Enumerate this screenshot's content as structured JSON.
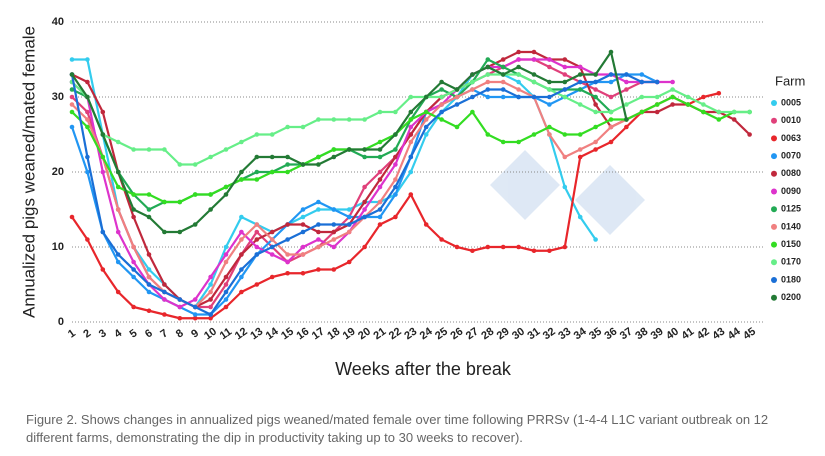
{
  "chart_data": {
    "type": "line",
    "ylabel": "Annualized pigs weaned/mated female",
    "xlabel": "Weeks after the break",
    "legend_title": "Farm",
    "legend": "right",
    "grid": true,
    "caption": "Figure 2. Shows changes in annualized pigs weaned/mated female over time following PRRSv (1-4-4 L1C variant outbreak on 12 different farms, demonstrating the dip in productivity taking up to 30 weeks to recover).",
    "categories": [
      1,
      2,
      3,
      4,
      5,
      6,
      7,
      8,
      9,
      10,
      11,
      12,
      13,
      14,
      15,
      16,
      17,
      18,
      19,
      20,
      21,
      22,
      23,
      24,
      25,
      26,
      27,
      28,
      29,
      30,
      31,
      32,
      33,
      34,
      35,
      36,
      37,
      38,
      39,
      40,
      41,
      42,
      43,
      44,
      45
    ],
    "ylim": [
      0,
      40
    ],
    "yticks": [
      0,
      10,
      20,
      30,
      40
    ],
    "series": [
      {
        "name": "0005",
        "color": "#33ccee",
        "values": [
          35,
          35,
          25,
          15,
          10,
          7,
          5,
          3,
          2,
          5,
          10,
          14,
          13,
          12,
          13,
          14,
          15,
          15,
          15,
          16,
          16,
          17,
          20,
          25,
          28,
          30,
          33,
          34,
          33,
          32,
          30,
          25,
          18,
          14,
          11,
          null,
          null,
          null,
          null,
          null,
          null,
          null,
          null,
          null,
          null
        ]
      },
      {
        "name": "0010",
        "color": "#e0407a",
        "values": [
          30,
          28,
          22,
          15,
          10,
          6,
          4,
          3,
          2,
          2,
          5,
          9,
          12,
          10,
          8,
          9,
          10,
          12,
          14,
          18,
          20,
          22,
          25,
          28,
          30,
          31,
          32,
          33,
          34,
          35,
          35,
          34,
          33,
          32,
          31,
          30,
          31,
          32,
          32,
          null,
          null,
          null,
          null,
          null,
          null
        ]
      },
      {
        "name": "0063",
        "color": "#e8262b",
        "values": [
          14,
          11,
          7,
          4,
          2,
          1.5,
          1,
          0.5,
          0.5,
          0.5,
          2,
          4,
          5,
          6,
          6.5,
          6.5,
          7,
          7,
          8,
          10,
          13,
          14,
          17,
          13,
          11,
          10,
          9.5,
          10,
          10,
          10,
          9.5,
          9.5,
          10,
          22,
          23,
          24,
          26,
          28,
          29,
          30,
          29,
          30,
          30.5,
          null,
          null
        ]
      },
      {
        "name": "0070",
        "color": "#2196f3",
        "values": [
          26,
          20,
          12,
          8,
          6,
          4,
          3,
          2,
          1,
          1,
          3,
          6,
          9,
          11,
          13,
          15,
          16,
          15,
          14,
          14,
          14,
          17,
          22,
          28,
          29,
          30,
          31,
          30,
          30,
          30,
          30,
          29,
          30,
          31,
          32,
          32,
          33,
          33,
          32,
          null,
          null,
          null,
          null,
          null,
          null
        ]
      },
      {
        "name": "0080",
        "color": "#c0283c",
        "values": [
          33,
          32,
          28,
          20,
          14,
          9,
          5,
          3,
          2,
          3,
          6,
          9,
          11,
          12,
          13,
          13,
          12,
          12,
          13,
          16,
          19,
          22,
          25,
          28,
          30,
          31,
          33,
          34,
          35,
          36,
          36,
          35,
          35,
          34,
          29,
          26,
          27,
          28,
          28,
          29,
          29,
          28,
          28,
          27,
          25
        ]
      },
      {
        "name": "0090",
        "color": "#dd33cc",
        "values": [
          32,
          30,
          20,
          12,
          8,
          5,
          3,
          2,
          3,
          6,
          9,
          12,
          10,
          9,
          8,
          10,
          11,
          10,
          12,
          15,
          18,
          21,
          26,
          28,
          29,
          31,
          33,
          34,
          34,
          35,
          35,
          35,
          34,
          34,
          33,
          33,
          32,
          32,
          32,
          32,
          null,
          null,
          null,
          null,
          null
        ]
      },
      {
        "name": "0125",
        "color": "#22aa55",
        "values": [
          31,
          30,
          25,
          20,
          17,
          15,
          16,
          16,
          17,
          17,
          18,
          19,
          20,
          20,
          21,
          21,
          22,
          23,
          23,
          22,
          22,
          23,
          27,
          30,
          31,
          30,
          32,
          35,
          34,
          33,
          32,
          31,
          31,
          31,
          30,
          28,
          null,
          null,
          null,
          null,
          null,
          null,
          null,
          null,
          null
        ]
      },
      {
        "name": "0140",
        "color": "#f08080",
        "values": [
          29,
          27,
          22,
          15,
          10,
          6,
          4,
          3,
          2,
          4,
          8,
          11,
          13,
          11,
          9,
          9,
          10,
          11,
          12,
          14,
          16,
          19,
          24,
          27,
          29,
          30,
          31,
          32,
          32,
          31,
          30,
          25,
          22,
          23,
          24,
          26,
          27,
          28,
          29,
          null,
          null,
          null,
          null,
          null,
          null
        ]
      },
      {
        "name": "0150",
        "color": "#33dd22",
        "values": [
          28,
          26,
          22,
          18,
          17,
          17,
          16,
          16,
          17,
          17,
          18,
          19,
          19,
          20,
          20,
          21,
          22,
          23,
          23,
          23,
          24,
          25,
          27,
          28,
          27,
          26,
          28,
          25,
          24,
          24,
          25,
          26,
          25,
          25,
          26,
          27,
          27,
          28,
          29,
          30,
          29,
          28,
          27,
          28,
          28
        ]
      },
      {
        "name": "0170",
        "color": "#66ee88",
        "values": [
          32,
          30,
          25,
          24,
          23,
          23,
          23,
          21,
          21,
          22,
          23,
          24,
          25,
          25,
          26,
          26,
          27,
          27,
          27,
          27,
          28,
          28,
          30,
          30,
          30,
          31,
          32,
          33,
          33,
          33,
          32,
          31,
          30,
          29,
          28,
          28,
          29,
          30,
          30,
          31,
          30,
          29,
          28,
          28,
          28
        ]
      },
      {
        "name": "0180",
        "color": "#1a6fd6",
        "values": [
          33,
          22,
          12,
          9,
          7,
          5,
          4,
          3,
          2,
          1,
          4,
          7,
          9,
          10,
          11,
          12,
          13,
          13,
          13,
          14,
          15,
          18,
          22,
          26,
          28,
          29,
          30,
          31,
          31,
          30,
          30,
          30,
          31,
          32,
          32,
          33,
          33,
          32,
          32,
          null,
          null,
          null,
          null,
          null,
          null
        ]
      },
      {
        "name": "0200",
        "color": "#237a35",
        "values": [
          33,
          30,
          25,
          20,
          15,
          14,
          12,
          12,
          13,
          15,
          17,
          20,
          22,
          22,
          22,
          21,
          21,
          22,
          23,
          23,
          23,
          25,
          28,
          30,
          32,
          31,
          33,
          34,
          33,
          34,
          33,
          32,
          32,
          33,
          33,
          36,
          27,
          null,
          null,
          null,
          null,
          null,
          null,
          null,
          null
        ]
      }
    ]
  }
}
